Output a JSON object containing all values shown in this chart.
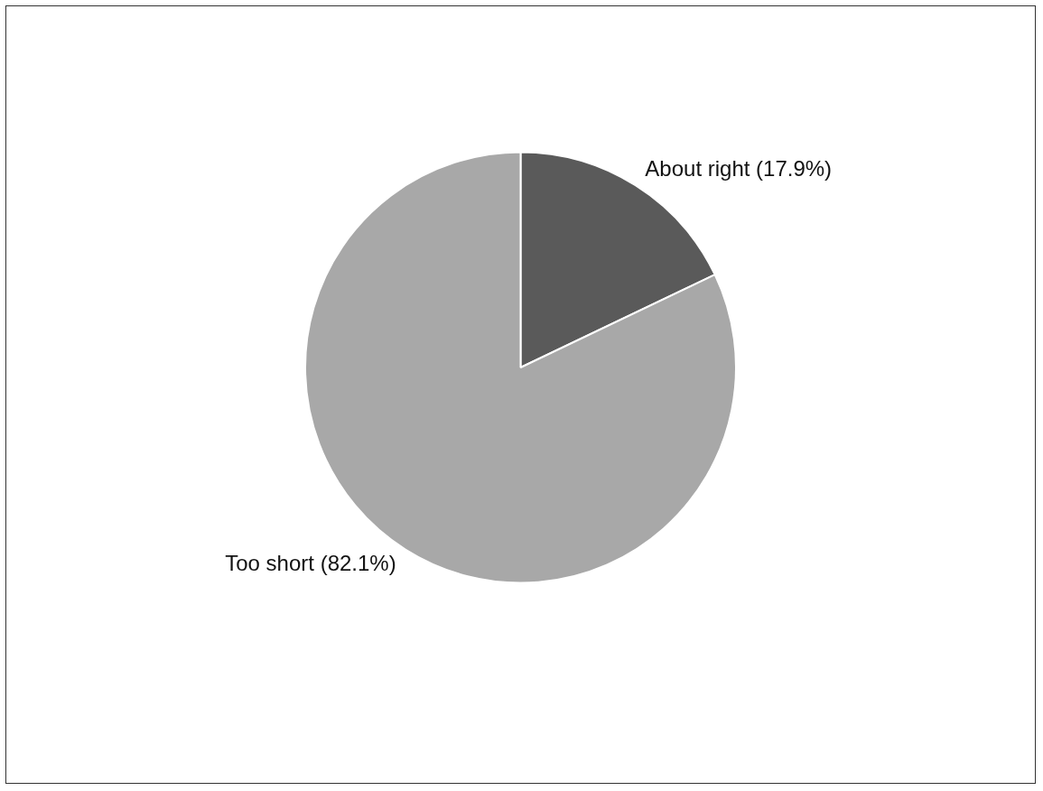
{
  "chart_data": {
    "type": "pie",
    "categories": [
      "About right (17.9%)",
      "Too short (82.1%)"
    ],
    "values": [
      17.9,
      82.1
    ],
    "colors": [
      "#5a5a5a",
      "#a8a8a8"
    ],
    "legend": false
  }
}
